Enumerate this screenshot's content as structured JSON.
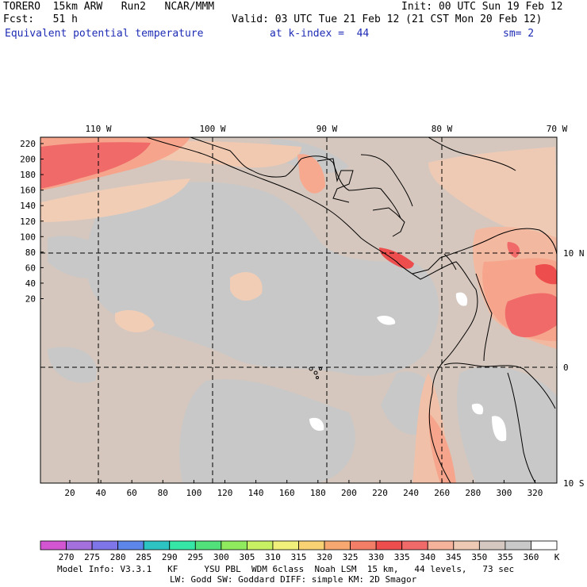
{
  "header": {
    "model": "TORERO  15km ARW   Run2   NCAR/MMM",
    "init": "Init: 00 UTC Sun 19 Feb 12",
    "fcst": "Fcst:   51 h",
    "valid": "Valid: 03 UTC Tue 21 Feb 12 (21 CST Mon 20 Feb 12)",
    "field": "Equivalent potential temperature",
    "level": "at k-index =  44",
    "smooth": "sm= 2"
  },
  "map": {
    "top_lon_labels": [
      "110 W",
      "100 W",
      "90 W",
      "80 W",
      "70 W"
    ],
    "right_lat_labels": [
      "10 N",
      "0",
      "10 S"
    ],
    "left_ticks": [
      "220",
      "200",
      "180",
      "160",
      "140",
      "120",
      "100",
      "80",
      "60",
      "40",
      "20"
    ],
    "bottom_ticks": [
      "20",
      "40",
      "60",
      "80",
      "100",
      "120",
      "140",
      "160",
      "180",
      "200",
      "220",
      "240",
      "260",
      "280",
      "300",
      "320"
    ]
  },
  "colorbar": {
    "labels": [
      "270",
      "275",
      "280",
      "285",
      "290",
      "295",
      "300",
      "305",
      "310",
      "315",
      "320",
      "325",
      "330",
      "335",
      "340",
      "345",
      "350",
      "355",
      "360"
    ],
    "unit": "K",
    "colors": [
      "#d255d2",
      "#a470dd",
      "#7e75e8",
      "#5c86ea",
      "#2ec3c3",
      "#35e6a6",
      "#52e07a",
      "#90ea5e",
      "#c8f063",
      "#f0f07a",
      "#f8d273",
      "#f6a870",
      "#f37e68",
      "#ee4d4d",
      "#f06a6a",
      "#f6b39c",
      "#eecab5",
      "#d4c8c0",
      "#c9c9c9",
      "#ffffff"
    ]
  },
  "footer": {
    "line1": "Model Info: V3.3.1   KF     YSU PBL  WDM 6class  Noah LSM  15 km,   44 levels,   73 sec",
    "line2": "LW: Godd SW: Goddard DIFF: simple KM: 2D Smagor"
  }
}
